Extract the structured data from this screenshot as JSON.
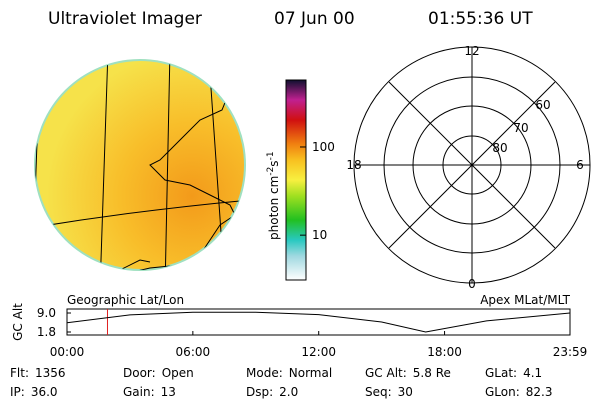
{
  "header": {
    "instrument": "Ultraviolet Imager",
    "date": "07 Jun 00",
    "time": "01:55:36 UT"
  },
  "colorbar": {
    "label": [
      "photon cm",
      "-2",
      "s",
      "-1"
    ],
    "ticks": [
      100,
      10
    ],
    "range": [
      3.1,
      575
    ],
    "log": true
  },
  "polar": {
    "mlt_labels": {
      "top": "12",
      "right": "6",
      "bottom": "0",
      "left": "18"
    },
    "lat_labels": [
      "60",
      "70",
      "80"
    ]
  },
  "panels": {
    "left_label": "Geographic Lat/Lon",
    "right_label": "Apex MLat/MLT"
  },
  "altitude_plot": {
    "ylabel": "GC Alt",
    "yticks": [
      {
        "value": 9,
        "label": "9.0"
      },
      {
        "value": 1.8,
        "label": "1.8"
      }
    ],
    "xticks": [
      {
        "value": 0,
        "label": "00:00"
      },
      {
        "value": 6,
        "label": "06:00"
      },
      {
        "value": 12,
        "label": "12:00"
      },
      {
        "value": 18,
        "label": "18:00"
      },
      {
        "value": 23.98,
        "label": "23:59"
      }
    ],
    "xlim": [
      0,
      23.98
    ],
    "ylim": [
      1.8,
      9
    ],
    "x": [
      0,
      3,
      6,
      9,
      12,
      15,
      17.1,
      20,
      23.98
    ],
    "values": [
      5.3,
      8.3,
      9.3,
      9.3,
      8.4,
      5.6,
      1.8,
      6.0,
      9.0
    ],
    "current_time": 1.93
  },
  "info": [
    [
      {
        "label": "Flt:",
        "value": "1356"
      },
      {
        "label": "Door:",
        "value": "Open"
      },
      {
        "label": "Mode:",
        "value": "Normal"
      },
      {
        "label": "GC Alt:",
        "value": "5.8 Re"
      },
      {
        "label": "GLat:",
        "value": "4.1"
      }
    ],
    [
      {
        "label": "IP:",
        "value": "36.0"
      },
      {
        "label": "Gain:",
        "value": "13"
      },
      {
        "label": "Dsp:",
        "value": "2.0"
      },
      {
        "label": "Seq:",
        "value": "30"
      },
      {
        "label": "GLon:",
        "value": "82.3"
      }
    ]
  ]
}
